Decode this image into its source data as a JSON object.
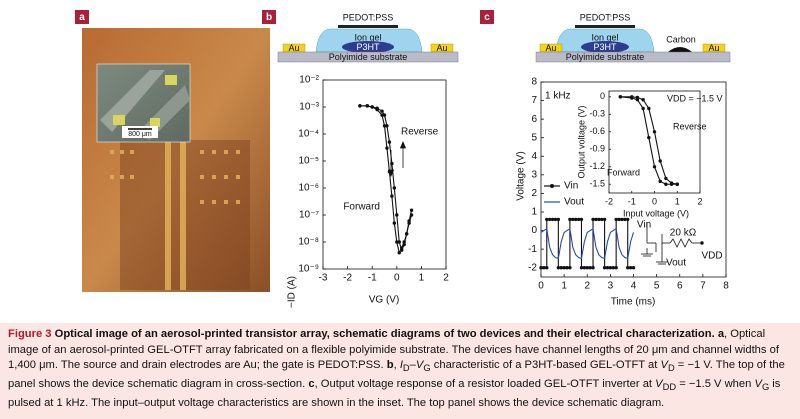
{
  "panels": {
    "a": "a",
    "b": "b",
    "c": "c"
  },
  "photo": {
    "scale_bar": "800 μm"
  },
  "schematics": [
    {
      "gate": "PEDOT:PSS",
      "dielectric": "Ion gel",
      "semiconductor": "P3HT",
      "source": "Au",
      "drain": "Au",
      "substrate": "Polyimide substrate"
    },
    {
      "gate": "PEDOT:PSS",
      "dielectric": "Ion gel",
      "semiconductor": "P3HT",
      "source": "Au",
      "drain": "Au",
      "substrate": "Polyimide substrate",
      "resistor": "Carbon"
    }
  ],
  "circuit": {
    "input": "Vin",
    "resistor": "20 kΩ",
    "output": "Vout",
    "supply": "VDD"
  },
  "chart_data": [
    {
      "type": "line",
      "ylog": true,
      "xlabel": "VG (V)",
      "ylabel": "−ID (A)",
      "xlim": [
        -3,
        2
      ],
      "xticks": [
        -3,
        -2,
        -1,
        0,
        1,
        2
      ],
      "ylim": [
        1e-09,
        0.01
      ],
      "yticks": [
        {
          "value": 1e-09,
          "label": "10⁻⁹"
        },
        {
          "value": 1e-08,
          "label": "10⁻⁸"
        },
        {
          "value": 1e-07,
          "label": "10⁻⁷"
        },
        {
          "value": 1e-06,
          "label": "10⁻⁶"
        },
        {
          "value": 1e-05,
          "label": "10⁻⁵"
        },
        {
          "value": 0.0001,
          "label": "10⁻⁴"
        },
        {
          "value": 0.001,
          "label": "10⁻³"
        },
        {
          "value": 0.01,
          "label": "10⁻²"
        }
      ],
      "x": [
        -1.5,
        -1.2,
        -1,
        -0.8,
        -0.6,
        -0.5,
        -0.4,
        -0.3,
        -0.2,
        -0.1,
        0,
        0.1,
        0.2,
        0.3,
        0.4,
        0.5,
        0.6
      ],
      "series": [
        {
          "name": "Forward",
          "color": "#111111",
          "markers": true,
          "values": [
            0.0011,
            0.0011,
            0.001,
            0.0008,
            0.0005,
            0.0002,
            3e-05,
            4e-06,
            5e-07,
            5e-08,
            1e-08,
            4e-09,
            6e-09,
            1e-08,
            2e-08,
            5e-08,
            1e-07
          ]
        },
        {
          "name": "Reverse",
          "color": "#111111",
          "markers": true,
          "values": [
            0.0011,
            0.0011,
            0.001,
            0.0009,
            0.0007,
            0.0005,
            0.0002,
            5e-05,
            8e-06,
            1e-06,
            1e-07,
            1e-08,
            5e-09,
            8e-09,
            2e-08,
            6e-08,
            1.5e-07
          ]
        }
      ],
      "annotations": [
        "Forward",
        "Reverse"
      ]
    },
    {
      "type": "line",
      "xlabel": "Time (ms)",
      "ylabel": "Voltage (V)",
      "xlim": [
        0,
        8
      ],
      "xticks": [
        0,
        1,
        2,
        3,
        4,
        5,
        6,
        7,
        8
      ],
      "ylim": [
        -2.5,
        8
      ],
      "yticks": [
        -2,
        -1,
        0,
        1,
        2,
        3,
        4,
        5,
        6,
        7,
        8
      ],
      "x": [
        0,
        0.125,
        0.25,
        0.25,
        0.375,
        0.5,
        0.625,
        0.75,
        0.75,
        0.875,
        1,
        1.125,
        1.25,
        1.25,
        1.375,
        1.5,
        1.625,
        1.75,
        1.75,
        1.875,
        2,
        2.125,
        2.25,
        2.25,
        2.375,
        2.5,
        2.625,
        2.75,
        2.75,
        2.875,
        3,
        3.125,
        3.25,
        3.25,
        3.375,
        3.5,
        3.625,
        3.75,
        3.75,
        3.875,
        4
      ],
      "series": [
        {
          "name": "Vin",
          "color": "#111111",
          "markers": true,
          "values": [
            -2,
            -2,
            -2,
            0.6,
            0.6,
            0.6,
            0.6,
            0.6,
            -2,
            -2,
            -2,
            -2,
            -2,
            0.6,
            0.6,
            0.6,
            0.6,
            0.6,
            -2,
            -2,
            -2,
            -2,
            -2,
            0.6,
            0.6,
            0.6,
            0.6,
            0.6,
            -2,
            -2,
            -2,
            -2,
            -2,
            0.6,
            0.6,
            0.6,
            0.6,
            0.6,
            -2,
            -2,
            -2
          ]
        },
        {
          "name": "Vout",
          "color": "#2b46b5",
          "markers": false,
          "values": [
            -0.1,
            0,
            0.1,
            0.1,
            -0.9,
            -1.3,
            -1.45,
            -1.5,
            -1.5,
            -0.6,
            -0.1,
            0,
            0.1,
            0.1,
            -0.9,
            -1.3,
            -1.45,
            -1.5,
            -1.5,
            -0.6,
            -0.1,
            0,
            0.1,
            0.1,
            -0.9,
            -1.3,
            -1.45,
            -1.5,
            -1.5,
            -0.6,
            -0.1,
            0,
            0.1,
            0.1,
            -0.9,
            -1.3,
            -1.45,
            -1.5,
            -1.5,
            -0.6,
            -0.1
          ]
        }
      ],
      "annotations": [
        "1 kHz"
      ]
    },
    {
      "type": "line",
      "xlabel": "Input voltage (V)",
      "ylabel": "Output voltage (V)",
      "xlim": [
        -2,
        2
      ],
      "xticks": [
        -2,
        -1,
        0,
        1,
        2
      ],
      "ylim": [
        -1.65,
        0.1
      ],
      "yticks": [
        0,
        -0.3,
        -0.6,
        -0.9,
        -1.2,
        -1.5
      ],
      "x": [
        -1.5,
        -1,
        -0.75,
        -0.5,
        -0.25,
        0,
        0.25,
        0.5,
        0.75,
        1
      ],
      "series": [
        {
          "name": "Forward",
          "color": "#111111",
          "markers": true,
          "values": [
            0,
            -0.02,
            -0.05,
            -0.2,
            -0.7,
            -1.2,
            -1.45,
            -1.5,
            -1.5,
            -1.5
          ]
        },
        {
          "name": "Reverse",
          "color": "#111111",
          "markers": true,
          "values": [
            0,
            0,
            -0.01,
            -0.05,
            -0.2,
            -0.6,
            -1.1,
            -1.4,
            -1.48,
            -1.5
          ]
        }
      ],
      "annotations": [
        "VDD = −1.5 V",
        "Reverse",
        "Forward"
      ]
    }
  ],
  "caption": [
    "Figure 3",
    " Optical image of an aerosol-printed transistor array, schematic diagrams of two devices and their electrical characterization.",
    "a",
    ", Optical image of an aerosol-printed GEL-OTFT array fabricated on a flexible polyimide substrate. The devices have channel lengths of 20 μm and channel widths of 1,400 μm. The source and drain electrodes are Au; the gate is PEDOT:PSS. ",
    "b",
    ", ",
    "I",
    "D",
    "–",
    "V",
    "G",
    " characteristic of a P3HT-based GEL-OTFT at ",
    "V",
    "D",
    " = −1 V. The top of the panel shows the device schematic diagram in cross-section. ",
    "c",
    ", Output voltage response of a resistor loaded GEL-OTFT inverter at ",
    "V",
    "DD",
    " = −1.5 V when ",
    "V",
    "G",
    " is pulsed at 1 kHz. The input–output voltage characteristics are shown in the inset. The top panel shows the device schematic diagram."
  ]
}
